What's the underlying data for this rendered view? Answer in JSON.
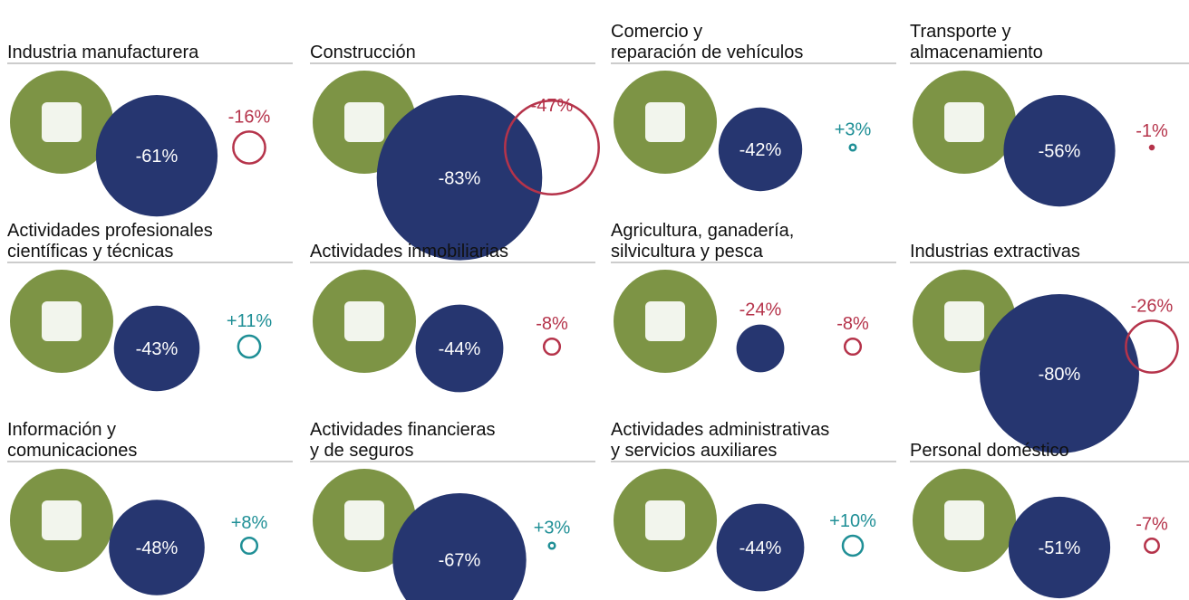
{
  "colors": {
    "main": "#263670",
    "negative": "#b5334a",
    "positive": "#1f8f96",
    "icon": "#7d9445"
  },
  "chart_data": [
    {
      "type": "bubble",
      "title": [
        "Industria manufacturera"
      ],
      "values": [
        -61,
        -16
      ],
      "value_labels": [
        "-61%",
        "-16%"
      ]
    },
    {
      "type": "bubble",
      "title": [
        "Construcción"
      ],
      "values": [
        -83,
        -47
      ],
      "value_labels": [
        "-83%",
        "-47%"
      ]
    },
    {
      "type": "bubble",
      "title": [
        "Comercio y",
        "reparación de vehículos"
      ],
      "values": [
        -42,
        3
      ],
      "value_labels": [
        "-42%",
        "+3%"
      ]
    },
    {
      "type": "bubble",
      "title": [
        "Transporte y",
        "almacenamiento"
      ],
      "values": [
        -56,
        -1
      ],
      "value_labels": [
        "-56%",
        "-1%"
      ]
    },
    {
      "type": "bubble",
      "title": [
        "Actividades profesionales",
        "científicas y técnicas"
      ],
      "values": [
        -43,
        11
      ],
      "value_labels": [
        "-43%",
        "+11%"
      ]
    },
    {
      "type": "bubble",
      "title": [
        "Actividades inmobiliarias"
      ],
      "values": [
        -44,
        -8
      ],
      "value_labels": [
        "-44%",
        "-8%"
      ]
    },
    {
      "type": "bubble",
      "title": [
        "Agricultura, ganadería,",
        "silvicultura y pesca"
      ],
      "values": [
        -24,
        -8
      ],
      "value_labels": [
        "-24%",
        "-8%"
      ]
    },
    {
      "type": "bubble",
      "title": [
        "Industrias extractivas"
      ],
      "values": [
        -80,
        -26
      ],
      "value_labels": [
        "-80%",
        "-26%"
      ]
    },
    {
      "type": "bubble",
      "title": [
        "Información y",
        "comunicaciones"
      ],
      "values": [
        -48,
        8
      ],
      "value_labels": [
        "-48%",
        "+8%"
      ]
    },
    {
      "type": "bubble",
      "title": [
        "Actividades financieras",
        "y de seguros"
      ],
      "values": [
        -67,
        3
      ],
      "value_labels": [
        "-67%",
        "+3%"
      ]
    },
    {
      "type": "bubble",
      "title": [
        "Actividades administrativas",
        "y servicios auxiliares"
      ],
      "values": [
        -44,
        10
      ],
      "value_labels": [
        "-44%",
        "+10%"
      ]
    },
    {
      "type": "bubble",
      "title": [
        "Personal doméstico"
      ],
      "values": [
        -51,
        -7
      ],
      "value_labels": [
        "-51%",
        "-7%"
      ]
    }
  ]
}
